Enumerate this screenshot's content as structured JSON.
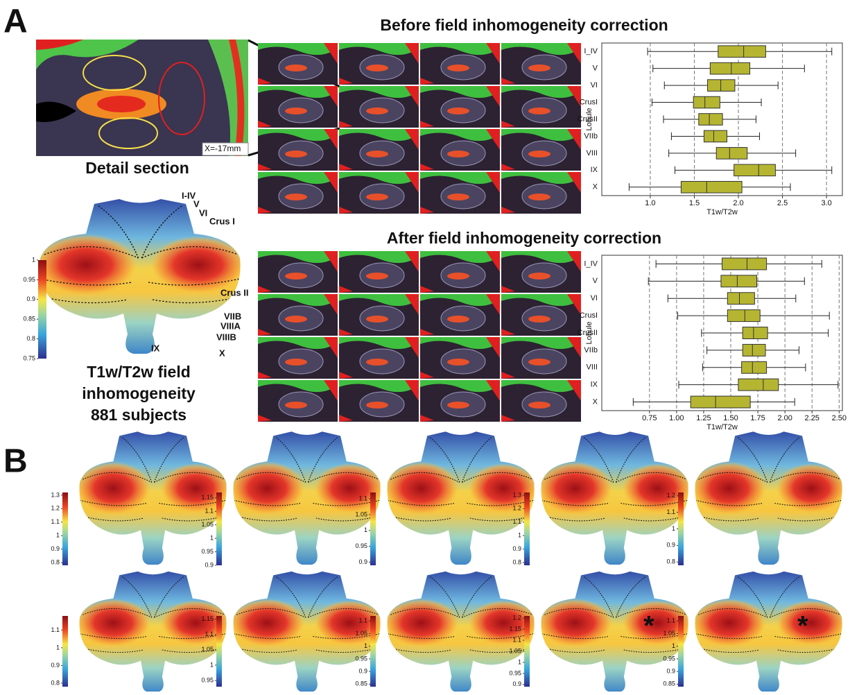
{
  "panel_a": {
    "label": "A",
    "detail_title": "Detail section",
    "detail_slice_label": "X=-17mm",
    "flatmap": {
      "lobules": [
        "I-IV",
        "V",
        "VI",
        "Crus I",
        "Crus II",
        "VIIB",
        "VIIIA",
        "VIIIB",
        "IX",
        "X"
      ],
      "colorbar": {
        "lim": [
          0.75,
          1
        ],
        "ticks": [
          0.75,
          0.8,
          0.85,
          0.9,
          0.95,
          1
        ]
      }
    },
    "caption_lines": [
      "T1w/T2w field",
      "inhomogeneity",
      "881 subjects"
    ]
  },
  "chart_data": [
    {
      "type": "box",
      "title": "Before field inhomogeneity correction",
      "xlabel": "T1w/T2w",
      "ylabel": "Lobule",
      "categories": [
        "I_IV",
        "V",
        "VI",
        "CrusI",
        "CrusII",
        "VIIb",
        "VIII",
        "IX",
        "X"
      ],
      "values": [
        [
          0.97,
          1.77,
          2.06,
          2.31,
          3.06
        ],
        [
          1.03,
          1.68,
          1.92,
          2.13,
          2.75
        ],
        [
          1.16,
          1.65,
          1.8,
          1.96,
          2.45
        ],
        [
          1.02,
          1.49,
          1.62,
          1.79,
          2.26
        ],
        [
          1.15,
          1.55,
          1.67,
          1.82,
          2.2
        ],
        [
          1.24,
          1.61,
          1.72,
          1.87,
          2.24
        ],
        [
          1.21,
          1.75,
          1.9,
          2.1,
          2.65
        ],
        [
          1.28,
          1.95,
          2.23,
          2.42,
          3.06
        ],
        [
          0.76,
          1.35,
          1.64,
          2.04,
          2.59
        ]
      ],
      "color": "#b5b532",
      "xlim": [
        0.45,
        3.18
      ],
      "xticks": [
        {
          "value": 1,
          "label": "1.0"
        },
        1.5,
        {
          "value": 2,
          "label": "2.0"
        },
        2.5,
        {
          "value": 3,
          "label": "3.0"
        }
      ],
      "grid": true
    },
    {
      "type": "box",
      "title": "After field inhomogeneity correction",
      "xlabel": "T1w/T2w",
      "ylabel": "Lobule",
      "categories": [
        "I_IV",
        "V",
        "VI",
        "CrusI",
        "CrusII",
        "VIIb",
        "VIII",
        "IX",
        "X"
      ],
      "values": [
        [
          0.81,
          1.42,
          1.65,
          1.83,
          2.34
        ],
        [
          0.74,
          1.41,
          1.56,
          1.74,
          2.18
        ],
        [
          0.92,
          1.47,
          1.58,
          1.72,
          2.1
        ],
        [
          1.01,
          1.47,
          1.63,
          1.77,
          2.41
        ],
        [
          1.23,
          1.61,
          1.71,
          1.84,
          2.4
        ],
        [
          1.28,
          1.61,
          1.7,
          1.82,
          2.13
        ],
        [
          1.24,
          1.6,
          1.7,
          1.83,
          2.19
        ],
        [
          1.02,
          1.57,
          1.8,
          1.94,
          2.49
        ],
        [
          0.6,
          1.13,
          1.36,
          1.68,
          2.09
        ]
      ],
      "color": "#b5b532",
      "xlim": [
        0.31,
        2.53
      ],
      "xticks": [
        0.75,
        {
          "value": 1,
          "label": "1.00"
        },
        1.25,
        {
          "value": 1.5,
          "label": "1.50"
        },
        1.75,
        {
          "value": 2,
          "label": "2.00"
        },
        2.25,
        {
          "value": 2.5,
          "label": "2.50"
        }
      ],
      "grid": true
    }
  ],
  "panel_b": {
    "label": "B",
    "maps": [
      {
        "colorbar": {
          "lim": [
            0.78,
            1.32
          ],
          "ticks": [
            0.8,
            0.9,
            1,
            1.1,
            1.2,
            1.3
          ]
        }
      },
      {
        "colorbar": {
          "lim": [
            0.9,
            1.17
          ],
          "ticks": [
            0.9,
            0.95,
            1,
            1.05,
            1.1,
            1.15
          ]
        }
      },
      {
        "colorbar": {
          "lim": [
            0.89,
            1.12
          ],
          "ticks": [
            0.9,
            0.95,
            1,
            1.05,
            1.1
          ]
        }
      },
      {
        "colorbar": {
          "lim": [
            0.78,
            1.32
          ],
          "ticks": [
            0.8,
            0.9,
            1,
            1.1,
            1.2,
            1.3
          ]
        }
      },
      {
        "colorbar": {
          "lim": [
            0.78,
            1.22
          ],
          "ticks": [
            0.8,
            0.9,
            1,
            1.1,
            1.2
          ]
        }
      },
      {
        "colorbar": {
          "lim": [
            0.78,
            1.18
          ],
          "ticks": [
            0.8,
            0.9,
            1,
            1.1
          ]
        }
      },
      {
        "colorbar": {
          "lim": [
            0.93,
            1.16
          ],
          "ticks": [
            0.95,
            1,
            1.05,
            1.1,
            1.15
          ]
        }
      },
      {
        "colorbar": {
          "lim": [
            0.84,
            1.12
          ],
          "ticks": [
            0.85,
            0.9,
            0.95,
            1,
            1.05,
            1.1
          ]
        }
      },
      {
        "colorbar": {
          "lim": [
            0.89,
            1.21
          ],
          "ticks": [
            0.9,
            0.95,
            1,
            1.05,
            1.1,
            1.15,
            1.2
          ]
        },
        "marker": "*"
      },
      {
        "colorbar": {
          "lim": [
            0.84,
            1.12
          ],
          "ticks": [
            0.85,
            0.9,
            0.95,
            1,
            1.05,
            1.1
          ]
        },
        "marker": "*"
      }
    ]
  }
}
